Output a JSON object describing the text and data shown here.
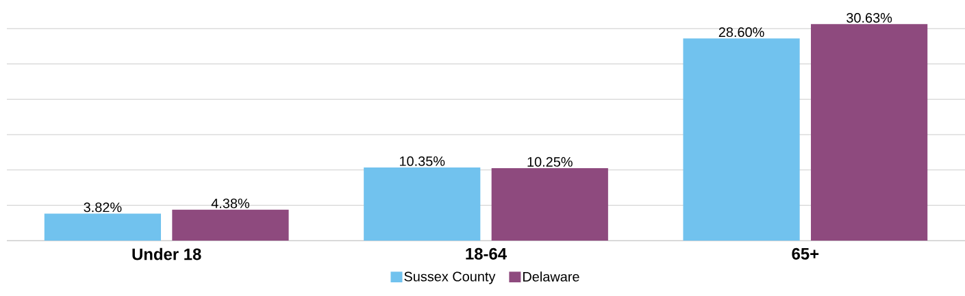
{
  "chart_data": {
    "type": "bar",
    "categories": [
      "Under 18",
      "18-64",
      "65+"
    ],
    "series": [
      {
        "name": "Sussex County",
        "color": "#71c2ee",
        "values": [
          3.82,
          10.35,
          28.6
        ],
        "value_labels": [
          "3.82%",
          "10.35%",
          "28.60%"
        ]
      },
      {
        "name": "Delaware",
        "color": "#8e4a7e",
        "values": [
          4.38,
          10.25,
          30.63
        ],
        "value_labels": [
          "4.38%",
          "10.25%",
          "30.63%"
        ]
      }
    ],
    "tick_labels": "x",
    "grid": "y",
    "legend": "bottom"
  }
}
